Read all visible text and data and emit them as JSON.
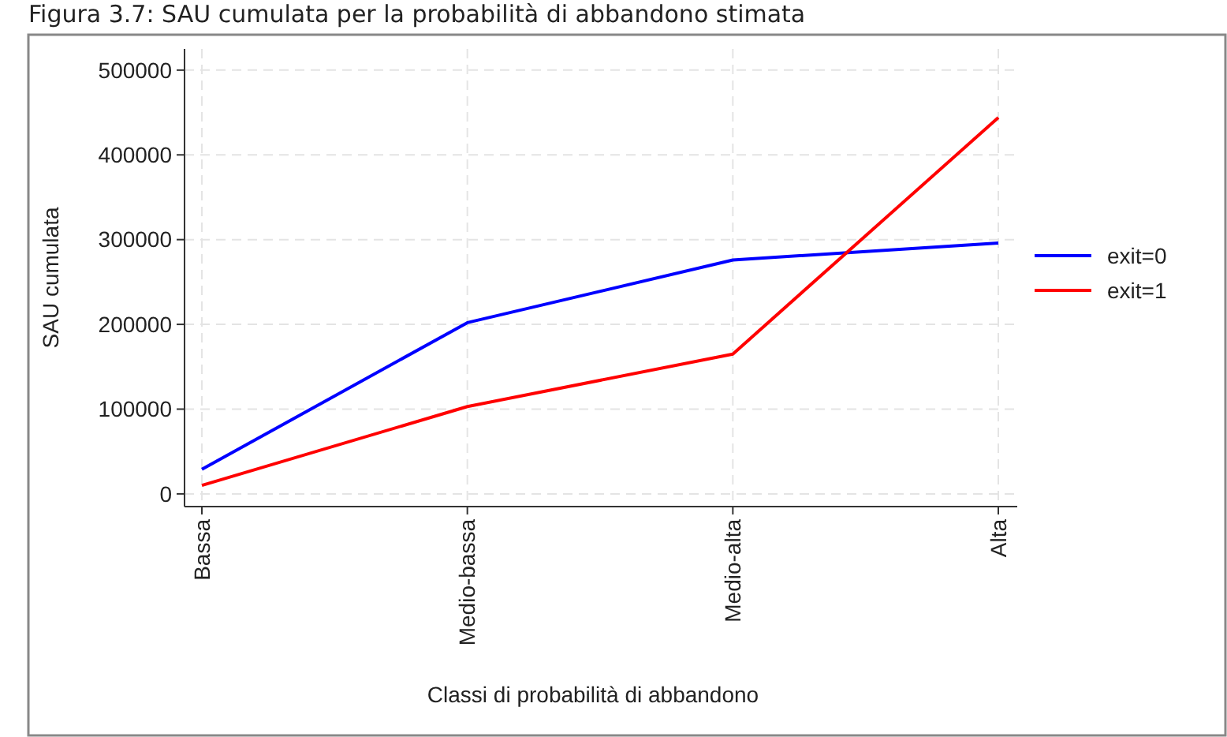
{
  "chart_data": {
    "type": "line",
    "title": "Figura 3.7: SAU cumulata per la probabilità di abbandono stimata",
    "xlabel": "Classi di probabilità di abbandono",
    "ylabel": "SAU cumulata",
    "categories": [
      "Bassa",
      "Medio-bassa",
      "Medio-alta",
      "Alta"
    ],
    "series": [
      {
        "name": "exit=0",
        "color": "#0000ff",
        "values": [
          29000,
          202000,
          276000,
          296000
        ]
      },
      {
        "name": "exit=1",
        "color": "#ff0000",
        "values": [
          10000,
          103000,
          165000,
          444000
        ]
      }
    ],
    "ylim": [
      -15000,
      525000
    ],
    "yticks": [
      0,
      100000,
      200000,
      300000,
      400000,
      500000
    ],
    "grid": true,
    "legend": "right",
    "line_style": "solid",
    "marker": "none"
  }
}
